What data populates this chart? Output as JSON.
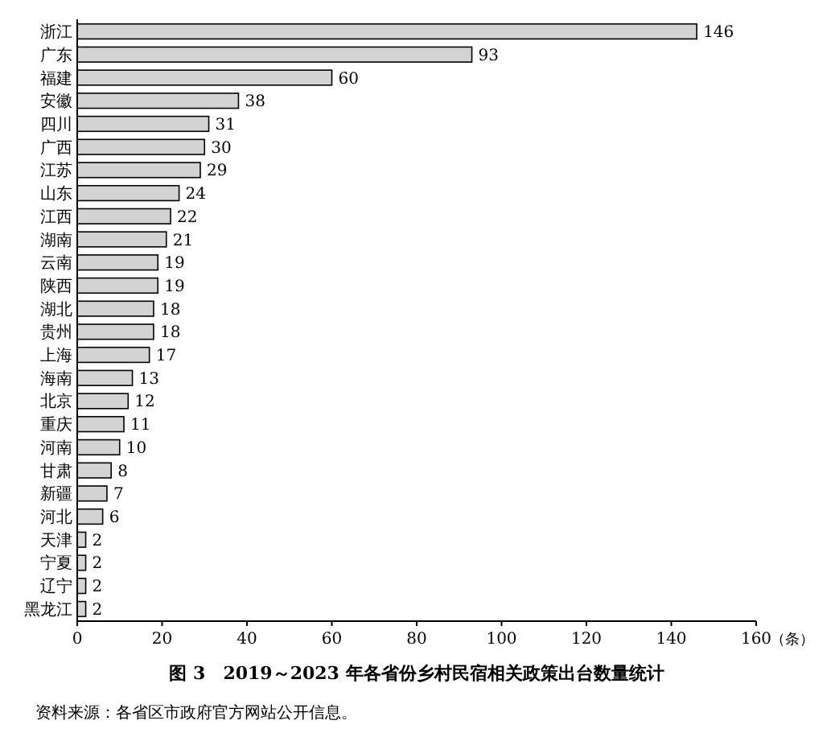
{
  "chart_data": {
    "type": "bar",
    "orientation": "horizontal",
    "title": "图 3　2019～2023 年各省份乡村民宿相关政策出台数量统计",
    "xlabel": "（条）",
    "categories": [
      "浙江",
      "广东",
      "福建",
      "安徽",
      "四川",
      "广西",
      "江苏",
      "山东",
      "江西",
      "湖南",
      "云南",
      "陕西",
      "湖北",
      "贵州",
      "上海",
      "海南",
      "北京",
      "重庆",
      "河南",
      "甘肃",
      "新疆",
      "河北",
      "天津",
      "宁夏",
      "辽宁",
      "黑龙江"
    ],
    "values": [
      146,
      93,
      60,
      38,
      31,
      30,
      29,
      24,
      22,
      21,
      19,
      19,
      18,
      18,
      17,
      13,
      12,
      11,
      10,
      8,
      7,
      6,
      2,
      2,
      2,
      2
    ],
    "color": "#d3d3d3",
    "xlim": [
      0,
      160
    ],
    "xticks": [
      0,
      20,
      40,
      60,
      80,
      100,
      120,
      140,
      160
    ],
    "grid": false,
    "data_labels": true,
    "annotations": [
      "资料来源：各省区市政府官方网站公开信息。"
    ]
  }
}
